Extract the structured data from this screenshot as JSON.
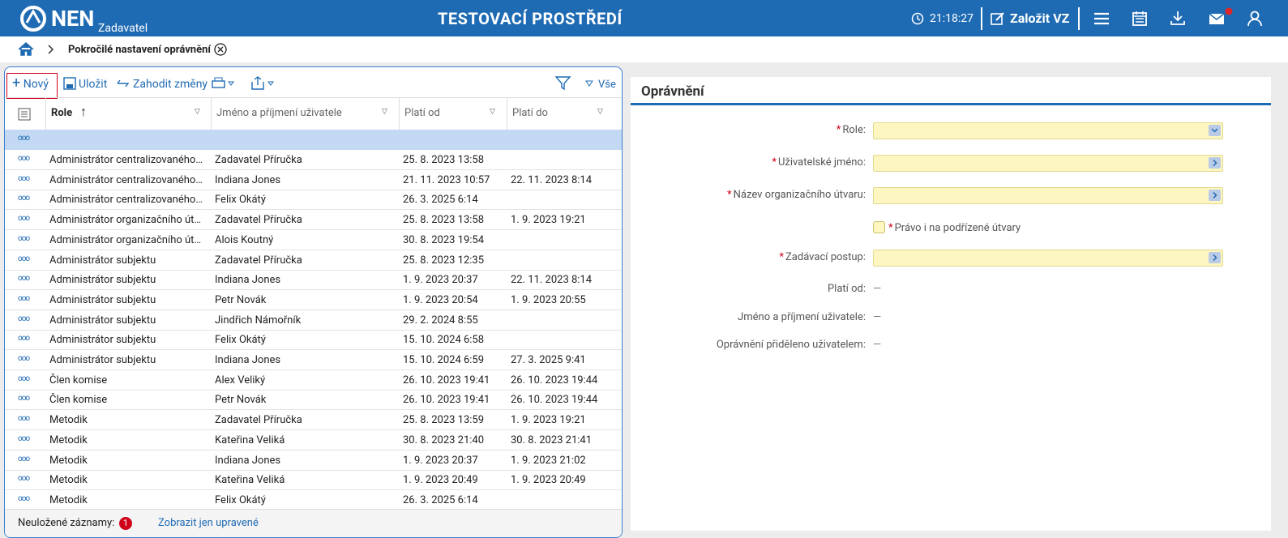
{
  "header": {
    "logo": "NEN",
    "subtitle": "Zadavatel",
    "environment": "TESTOVACÍ PROSTŘEDÍ",
    "time": "21:18:27",
    "action": "Založit VZ"
  },
  "breadcrumb": {
    "current": "Pokročilé nastavení oprávnění"
  },
  "toolbar": {
    "new": "Nový",
    "save": "Uložit",
    "discard": "Zahodit změny",
    "filter_all": "Vše"
  },
  "table": {
    "columns": [
      "Role",
      "Jméno a příjmení uživatele",
      "Platí od",
      "Platí do"
    ],
    "rows": [
      [
        "Administrátor centralizovaného…",
        "Zadavatel Příručka",
        "25. 8. 2023 13:58",
        null
      ],
      [
        "Administrátor centralizovaného…",
        "Indiana Jones",
        "21. 11. 2023 10:57",
        "22. 11. 2023 8:14"
      ],
      [
        "Administrátor centralizovaného…",
        "Felix Okátý",
        "26. 3. 2025 6:14",
        null
      ],
      [
        "Administrátor organizačního út…",
        "Zadavatel Příručka",
        "25. 8. 2023 13:58",
        "1. 9. 2023 19:21"
      ],
      [
        "Administrátor organizačního út…",
        "Alois Koutný",
        "30. 8. 2023 19:54",
        null
      ],
      [
        "Administrátor subjektu",
        "Zadavatel Příručka",
        "25. 8. 2023 12:35",
        null
      ],
      [
        "Administrátor subjektu",
        "Indiana Jones",
        "1. 9. 2023 20:37",
        "22. 11. 2023 8:14"
      ],
      [
        "Administrátor subjektu",
        "Petr Novák",
        "1. 9. 2023 20:54",
        "1. 9. 2023 20:55"
      ],
      [
        "Administrátor subjektu",
        "Jindřich Námořník",
        "29. 2. 2024 8:55",
        null
      ],
      [
        "Administrátor subjektu",
        "Felix Okátý",
        "15. 10. 2024 6:58",
        null
      ],
      [
        "Administrátor subjektu",
        "Indiana Jones",
        "15. 10. 2024 6:59",
        "27. 3. 2025 9:41"
      ],
      [
        "Člen komise",
        "Alex Veliký",
        "26. 10. 2023 19:41",
        "26. 10. 2023 19:44"
      ],
      [
        "Člen komise",
        "Petr Novák",
        "26. 10. 2023 19:41",
        "26. 10. 2023 19:44"
      ],
      [
        "Metodik",
        "Zadavatel Příručka",
        "25. 8. 2023 13:59",
        "1. 9. 2023 19:21"
      ],
      [
        "Metodik",
        "Kateřina Veliká",
        "30. 8. 2023 21:40",
        "30. 8. 2023 21:41"
      ],
      [
        "Metodik",
        "Indiana Jones",
        "1. 9. 2023 20:37",
        "1. 9. 2023 21:02"
      ],
      [
        "Metodik",
        "Kateřina Veliká",
        "1. 9. 2023 20:49",
        "1. 9. 2023 20:49"
      ],
      [
        "Metodik",
        "Felix Okátý",
        "26. 3. 2025 6:14",
        null
      ]
    ],
    "footer_label": "Neuložené záznamy:",
    "unsaved_count": "1",
    "show_edited": "Zobrazit jen upravené"
  },
  "form": {
    "title": "Oprávnění",
    "required_mark": "*",
    "empty_value": "—",
    "fields": [
      "Role:",
      "Uživatelské jméno:",
      "Název organizačního útvaru:",
      "Zadávací postup:"
    ],
    "checkbox": "Právo i na podřízené útvary",
    "readonly": [
      "Platí od:",
      "Jméno a příjmení uživatele:",
      "Oprávnění přiděleno uživatelem:"
    ]
  }
}
